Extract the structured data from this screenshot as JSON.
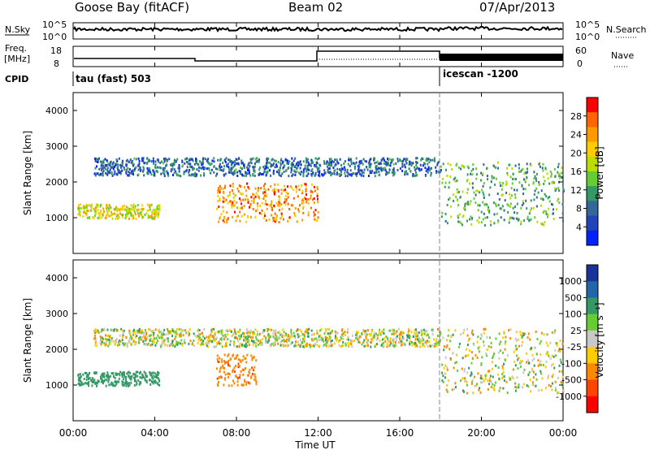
{
  "header": {
    "station": "Goose Bay (fitACF)",
    "beam": "Beam 02",
    "date": "07/Apr/2013"
  },
  "top_panels": {
    "nsky_label": "N.Sky",
    "nsky_ticks": [
      "10^5",
      "10^0"
    ],
    "nsearch_label": "N.Search",
    "nsearch_ticks": [
      "10^5",
      "10^0"
    ],
    "freq_label": "Freq.",
    "freq_unit": "[MHz]",
    "freq_ticks": [
      "18",
      "8"
    ],
    "nave_label": "Nave",
    "nave_ticks": [
      "60",
      "0"
    ],
    "cpid_label": "CPID",
    "cpid_segments": [
      {
        "label": "tau (fast) 503",
        "start_h": 0,
        "end_h": 18
      },
      {
        "label": "icescan -1200",
        "start_h": 18,
        "end_h": 24
      }
    ]
  },
  "chart_data": [
    {
      "type": "heatmap",
      "panel": "power",
      "ylabel": "Slant Range [km]",
      "ylim": [
        0,
        4500
      ],
      "yticks": [
        1000,
        2000,
        3000,
        4000
      ],
      "xlim": [
        0,
        24
      ],
      "xticks": [
        "00:00",
        "04:00",
        "08:00",
        "12:00",
        "16:00",
        "20:00",
        "00:00"
      ],
      "colorbar": {
        "label": "Power [dB]",
        "ticks": [
          "28",
          "24",
          "20",
          "16",
          "12",
          "8",
          "4"
        ],
        "colors": [
          "#ff0000",
          "#ff6600",
          "#ff9900",
          "#ffcc00",
          "#bbdd00",
          "#66cc33",
          "#339966",
          "#336699",
          "#2244bb",
          "#0022ff"
        ]
      },
      "features": [
        {
          "name": "far band",
          "start_h": 1,
          "end_h": 18,
          "range_km": [
            2200,
            2700
          ],
          "power_db": 6
        },
        {
          "name": "near echo 00-04",
          "start_h": 0.2,
          "end_h": 4.2,
          "range_km": [
            1000,
            1400
          ],
          "power_db": 18
        },
        {
          "name": "enhanced echo 07-12",
          "start_h": 7,
          "end_h": 12,
          "range_km": [
            900,
            2000
          ],
          "power_db": 24
        },
        {
          "name": "icescan scatter",
          "start_h": 18,
          "end_h": 24,
          "range_km": [
            800,
            2600
          ],
          "power_db": 12
        }
      ]
    },
    {
      "type": "heatmap",
      "panel": "velocity",
      "ylabel": "Slant Range [km]",
      "ylim": [
        0,
        4500
      ],
      "yticks": [
        1000,
        2000,
        3000,
        4000
      ],
      "xlim": [
        0,
        24
      ],
      "xticks": [
        "00:00",
        "04:00",
        "08:00",
        "12:00",
        "16:00",
        "20:00",
        "00:00"
      ],
      "xlabel": "Time UT",
      "colorbar": {
        "label": "Velocity [m s⁻¹]",
        "ticks": [
          "1000",
          "500",
          "100",
          "25",
          "-25",
          "-100",
          "-500",
          "-1000"
        ],
        "colors": [
          "#1a3399",
          "#2266aa",
          "#339966",
          "#66cc33",
          "#c8c8c8",
          "#ffcc00",
          "#ff8800",
          "#ff4400",
          "#ff0000"
        ]
      },
      "features": [
        {
          "name": "ground scatter band",
          "start_h": 1,
          "end_h": 18,
          "range_km": [
            2100,
            2600
          ],
          "velocity_ms": 0
        },
        {
          "name": "near echo 00-04",
          "start_h": 0.2,
          "end_h": 4.2,
          "range_km": [
            1000,
            1400
          ],
          "velocity_ms": 300
        },
        {
          "name": "negative velocity 07-09",
          "start_h": 7,
          "end_h": 9,
          "range_km": [
            1000,
            1900
          ],
          "velocity_ms": -400
        },
        {
          "name": "icescan scatter",
          "start_h": 18,
          "end_h": 24,
          "range_km": [
            800,
            2600
          ],
          "velocity_ms": 0
        }
      ]
    }
  ]
}
